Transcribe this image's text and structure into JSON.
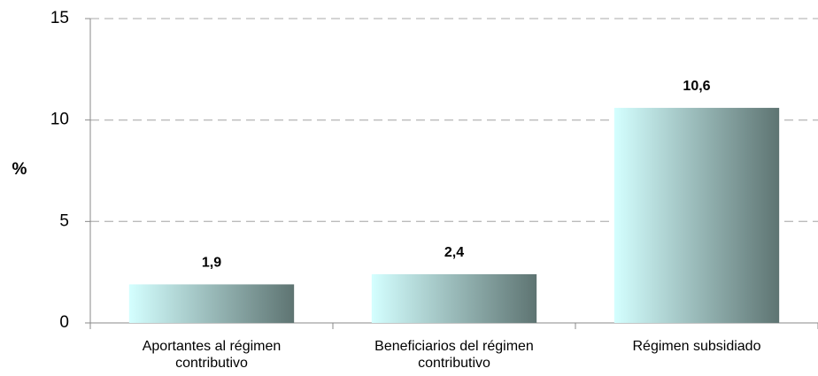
{
  "chart_data": {
    "type": "bar",
    "y_label": "%",
    "categories": [
      "Aportantes al régimen contributivo",
      "Beneficiarios del régimen contributivo",
      "Régimen subsidiado"
    ],
    "values": [
      1.9,
      2.4,
      10.6
    ],
    "value_labels": [
      "1,9",
      "2,4",
      "10,6"
    ],
    "gradient": [
      "#d4ffff",
      "#5e7472"
    ],
    "ylim": [
      0,
      15
    ],
    "yticks": [
      0,
      5,
      10,
      15
    ],
    "grid": true
  }
}
